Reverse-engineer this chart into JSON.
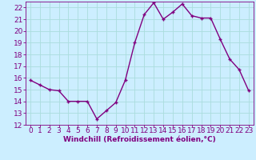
{
  "x": [
    0,
    1,
    2,
    3,
    4,
    5,
    6,
    7,
    8,
    9,
    10,
    11,
    12,
    13,
    14,
    15,
    16,
    17,
    18,
    19,
    20,
    21,
    22,
    23
  ],
  "y": [
    15.8,
    15.4,
    15.0,
    14.9,
    14.0,
    14.0,
    14.0,
    12.5,
    13.2,
    13.9,
    15.8,
    19.0,
    21.4,
    22.4,
    21.0,
    21.6,
    22.3,
    21.3,
    21.1,
    21.1,
    19.3,
    17.6,
    16.7,
    14.9
  ],
  "line_color": "#800080",
  "marker": "+",
  "background_color": "#cceeff",
  "grid_color": "#aadddd",
  "xlabel": "Windchill (Refroidissement éolien,°C)",
  "ylim": [
    12,
    22.5
  ],
  "xlim": [
    -0.5,
    23.5
  ],
  "yticks": [
    12,
    13,
    14,
    15,
    16,
    17,
    18,
    19,
    20,
    21,
    22
  ],
  "xticks": [
    0,
    1,
    2,
    3,
    4,
    5,
    6,
    7,
    8,
    9,
    10,
    11,
    12,
    13,
    14,
    15,
    16,
    17,
    18,
    19,
    20,
    21,
    22,
    23
  ],
  "tick_color": "#800080",
  "label_color": "#800080",
  "font_size_xlabel": 6.5,
  "font_size_ticks": 6.5,
  "line_width": 1.0,
  "marker_size": 3.5,
  "marker_edge_width": 1.0
}
